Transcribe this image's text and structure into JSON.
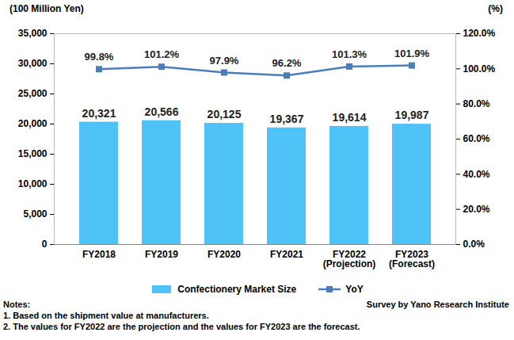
{
  "chart_data": {
    "type": "bar",
    "y_label": "(100 Million Yen)",
    "y2_label": "(%)",
    "categories": [
      "FY2018",
      "FY2019",
      "FY2020",
      "FY2021",
      "FY2022\n(Projection)",
      "FY2023\n(Forecast)"
    ],
    "series": [
      {
        "name": "Confectionery Market Size",
        "type": "bar",
        "color": "#4fc3f7",
        "values": [
          20321,
          20566,
          20125,
          19367,
          19614,
          19987
        ],
        "value_labels": [
          "20,321",
          "20,566",
          "20,125",
          "19,367",
          "19,614",
          "19,987"
        ]
      },
      {
        "name": "YoY",
        "type": "line",
        "axis": "y2",
        "color": "#4a7ebb",
        "marker": "square",
        "values": [
          99.8,
          101.2,
          97.9,
          96.2,
          101.3,
          101.9
        ],
        "value_labels": [
          "99.8%",
          "101.2%",
          "97.9%",
          "96.2%",
          "101.3%",
          "101.9%"
        ]
      }
    ],
    "ylim": [
      0,
      35000
    ],
    "yticks": [
      0,
      {
        "value": 5000,
        "label": "5,000"
      },
      {
        "value": 10000,
        "label": "10,000"
      },
      {
        "value": 15000,
        "label": "15,000"
      },
      {
        "value": 20000,
        "label": "20,000"
      },
      {
        "value": 25000,
        "label": "25,000"
      },
      {
        "value": 30000,
        "label": "30,000"
      },
      {
        "value": 35000,
        "label": "35,000"
      }
    ],
    "y2lim": [
      0,
      120
    ],
    "y2ticks": [
      {
        "value": 0,
        "label": "0.0%"
      },
      {
        "value": 20,
        "label": "20.0%"
      },
      {
        "value": 40,
        "label": "40.0%"
      },
      {
        "value": 60,
        "label": "60.0%"
      },
      {
        "value": 80,
        "label": "80.0%"
      },
      {
        "value": 100,
        "label": "100.0%"
      },
      {
        "value": 120,
        "label": "120.0%"
      }
    ],
    "grid": false,
    "data_labels": true,
    "legend": "bottom",
    "notes": [
      "Notes:",
      "1. Based on the shipment value at manufacturers.",
      "2. The values for FY2022 are the projection and the values for FY2023 are the forecast."
    ],
    "source": "Survey by Yano Research Institute"
  }
}
